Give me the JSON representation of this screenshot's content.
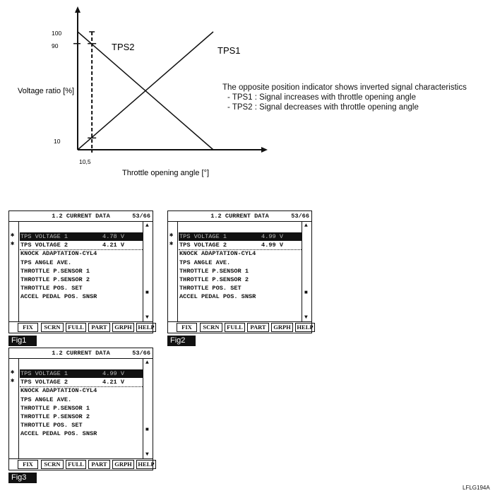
{
  "chart_data": {
    "type": "line",
    "xlabel": "Throttle opening angle [°]",
    "ylabel": "Voltage ratio [%]",
    "y_ticks": [
      "100",
      "90",
      "10"
    ],
    "x_ticks": [
      "10,5"
    ],
    "grid": false,
    "series": [
      {
        "name": "TPS1",
        "x": [
          0,
          100
        ],
        "y": [
          0,
          100
        ]
      },
      {
        "name": "TPS2",
        "x": [
          0,
          100
        ],
        "y": [
          100,
          0
        ]
      }
    ],
    "marker_line": {
      "x": 10.5,
      "style": "dashed",
      "tps1_value": 10,
      "tps2_value": 90
    }
  },
  "note": {
    "heading": "The opposite position indicator shows inverted signal characteristics",
    "items": [
      "- TPS1 : Signal increases with throttle opening angle",
      "- TPS2 : Signal decreases with throttle opening angle"
    ]
  },
  "screens": [
    {
      "title": "1.2 CURRENT DATA",
      "page": "53/66",
      "figure_label": "Fig1",
      "rows": [
        {
          "label": "TPS VOLTAGE 1",
          "value": "4.78 V",
          "mark": "✱"
        },
        {
          "label": "TPS VOLTAGE 2",
          "value": "4.21 V",
          "mark": "✱"
        },
        {
          "label": "KNOCK ADAPTATION-CYL4",
          "value": ""
        },
        {
          "label": "TPS ANGLE AVE.",
          "value": ""
        },
        {
          "label": "THROTTLE P.SENSOR 1",
          "value": ""
        },
        {
          "label": "THROTTLE P.SENSOR 2",
          "value": ""
        },
        {
          "label": "THROTTLE POS. SET",
          "value": ""
        },
        {
          "label": "ACCEL PEDAL POS. SNSR",
          "value": ""
        }
      ]
    },
    {
      "title": "1.2 CURRENT DATA",
      "page": "53/66",
      "figure_label": "Fig2",
      "rows": [
        {
          "label": "TPS VOLTAGE 1",
          "value": "4.99 V",
          "mark": "✱"
        },
        {
          "label": "TPS VOLTAGE 2",
          "value": "4.99 V",
          "mark": "✱"
        },
        {
          "label": "KNOCK ADAPTATION-CYL4",
          "value": ""
        },
        {
          "label": "TPS ANGLE AVE.",
          "value": ""
        },
        {
          "label": "THROTTLE P.SENSOR 1",
          "value": ""
        },
        {
          "label": "THROTTLE P.SENSOR 2",
          "value": ""
        },
        {
          "label": "THROTTLE POS. SET",
          "value": ""
        },
        {
          "label": "ACCEL PEDAL POS. SNSR",
          "value": ""
        }
      ]
    },
    {
      "title": "1.2 CURRENT DATA",
      "page": "53/66",
      "figure_label": "Fig3",
      "rows": [
        {
          "label": "TPS VOLTAGE 1",
          "value": "4.99 V",
          "mark": "✱"
        },
        {
          "label": "TPS VOLTAGE 2",
          "value": "4.21 V",
          "mark": "✱"
        },
        {
          "label": "KNOCK ADAPTATION-CYL4",
          "value": ""
        },
        {
          "label": "TPS ANGLE AVE.",
          "value": ""
        },
        {
          "label": "THROTTLE P.SENSOR 1",
          "value": ""
        },
        {
          "label": "THROTTLE P.SENSOR 2",
          "value": ""
        },
        {
          "label": "THROTTLE POS. SET",
          "value": ""
        },
        {
          "label": "ACCEL PEDAL POS. SNSR",
          "value": ""
        }
      ]
    }
  ],
  "scroll": {
    "up": "▲",
    "thumb": "■",
    "down": "▼"
  },
  "buttons": [
    "FIX",
    "SCRN",
    "FULL",
    "PART",
    "GRPH",
    "HELP"
  ],
  "figure_code": "LFLG194A"
}
